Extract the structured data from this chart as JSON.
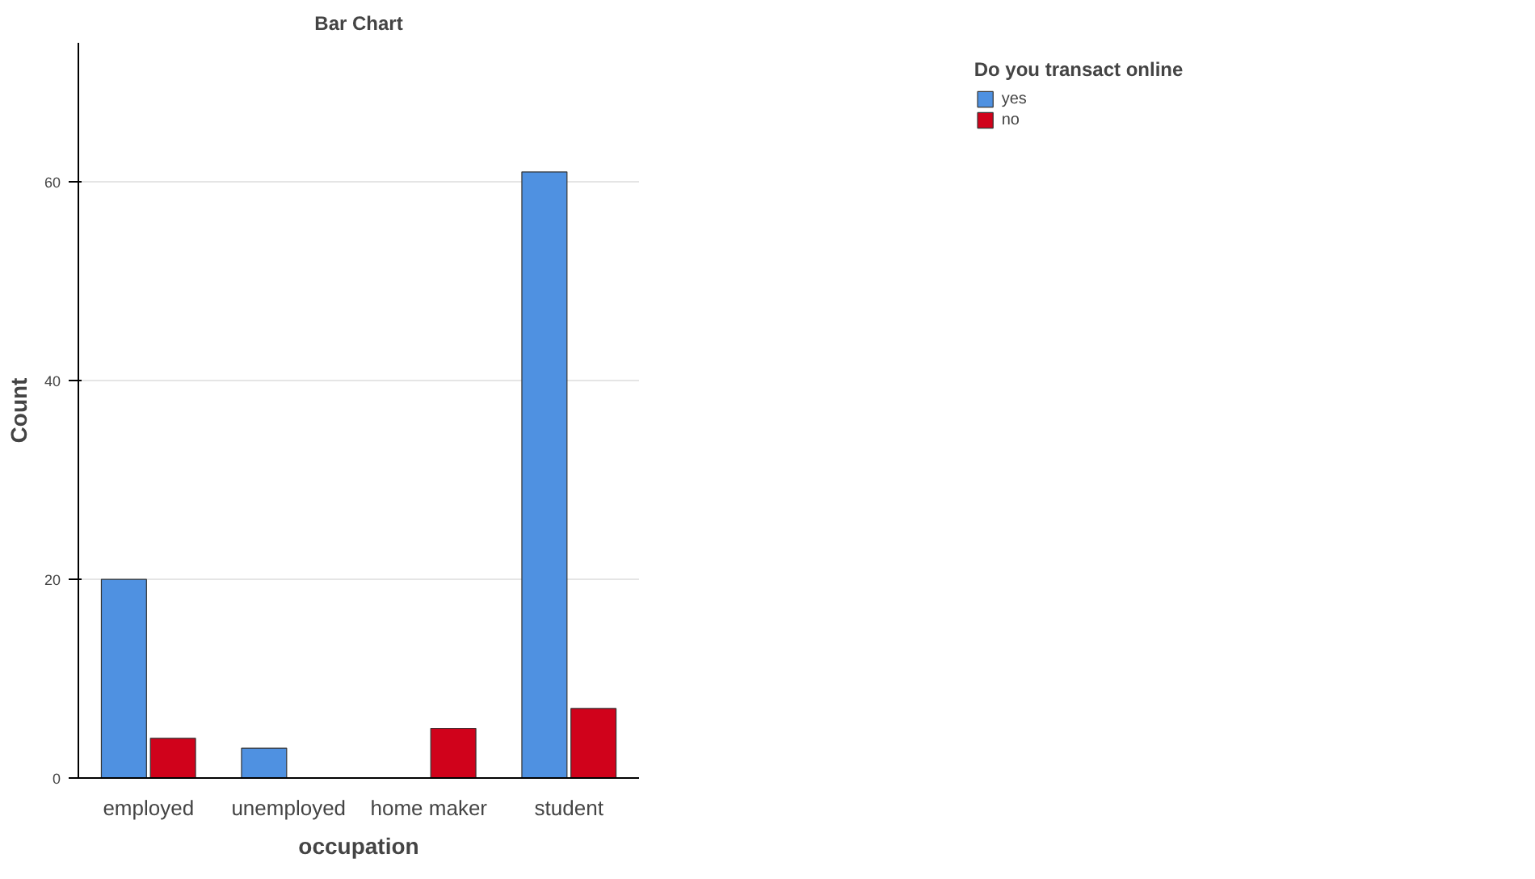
{
  "chart_data": {
    "type": "bar",
    "title": "Bar Chart",
    "xlabel": "occupation",
    "ylabel": "Count",
    "legend_title": "Do you transact online",
    "categories": [
      "employed",
      "unemployed",
      "home maker",
      "student"
    ],
    "series": [
      {
        "name": "yes",
        "color": "#4f91e1",
        "values": [
          20,
          3,
          null,
          61
        ]
      },
      {
        "name": "no",
        "color": "#d0021b",
        "values": [
          4,
          null,
          5,
          7
        ]
      }
    ],
    "ylim": [
      0,
      74
    ],
    "yticks": [
      0,
      20,
      40,
      60
    ],
    "grid": "y",
    "legend": "top right"
  }
}
